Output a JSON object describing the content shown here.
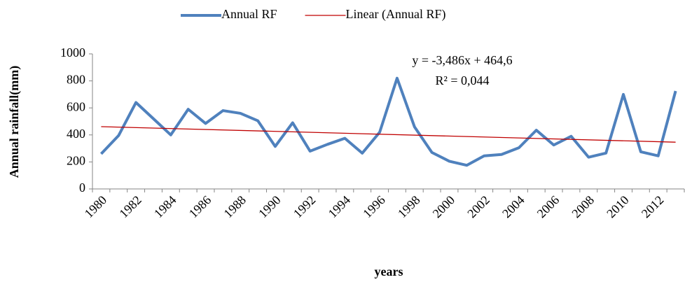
{
  "chart_data": {
    "type": "line",
    "categories": [
      "1980",
      null,
      "1982",
      null,
      "1984",
      null,
      "1986",
      null,
      "1988",
      null,
      "1990",
      null,
      "1992",
      null,
      "1994",
      null,
      "1996",
      null,
      "1998",
      null,
      "2000",
      null,
      "2002",
      null,
      "2004",
      null,
      "2006",
      null,
      "2008",
      null,
      "2010",
      null,
      "2012",
      null
    ],
    "series": [
      {
        "name": "Annual RF",
        "color": "#4f81bd",
        "values": [
          260,
          395,
          640,
          520,
          400,
          590,
          485,
          580,
          560,
          505,
          315,
          490,
          280,
          330,
          375,
          265,
          420,
          820,
          460,
          270,
          205,
          175,
          245,
          255,
          305,
          435,
          325,
          390,
          235,
          265,
          700,
          275,
          245,
          725
        ]
      }
    ],
    "trendline": {
      "name": "Linear (Annual RF)",
      "color": "#c00000",
      "slope": -3.486,
      "intercept": 464.6
    },
    "annotations": [
      "y = -3,486x + 464,6",
      "R² = 0,044"
    ],
    "x_label": "years",
    "y_label": "Annual rainfall(mm)",
    "ylim": [
      0,
      1000
    ],
    "yticks": [
      0,
      200,
      400,
      600,
      800,
      1000
    ],
    "grid": false,
    "legend": "top"
  }
}
